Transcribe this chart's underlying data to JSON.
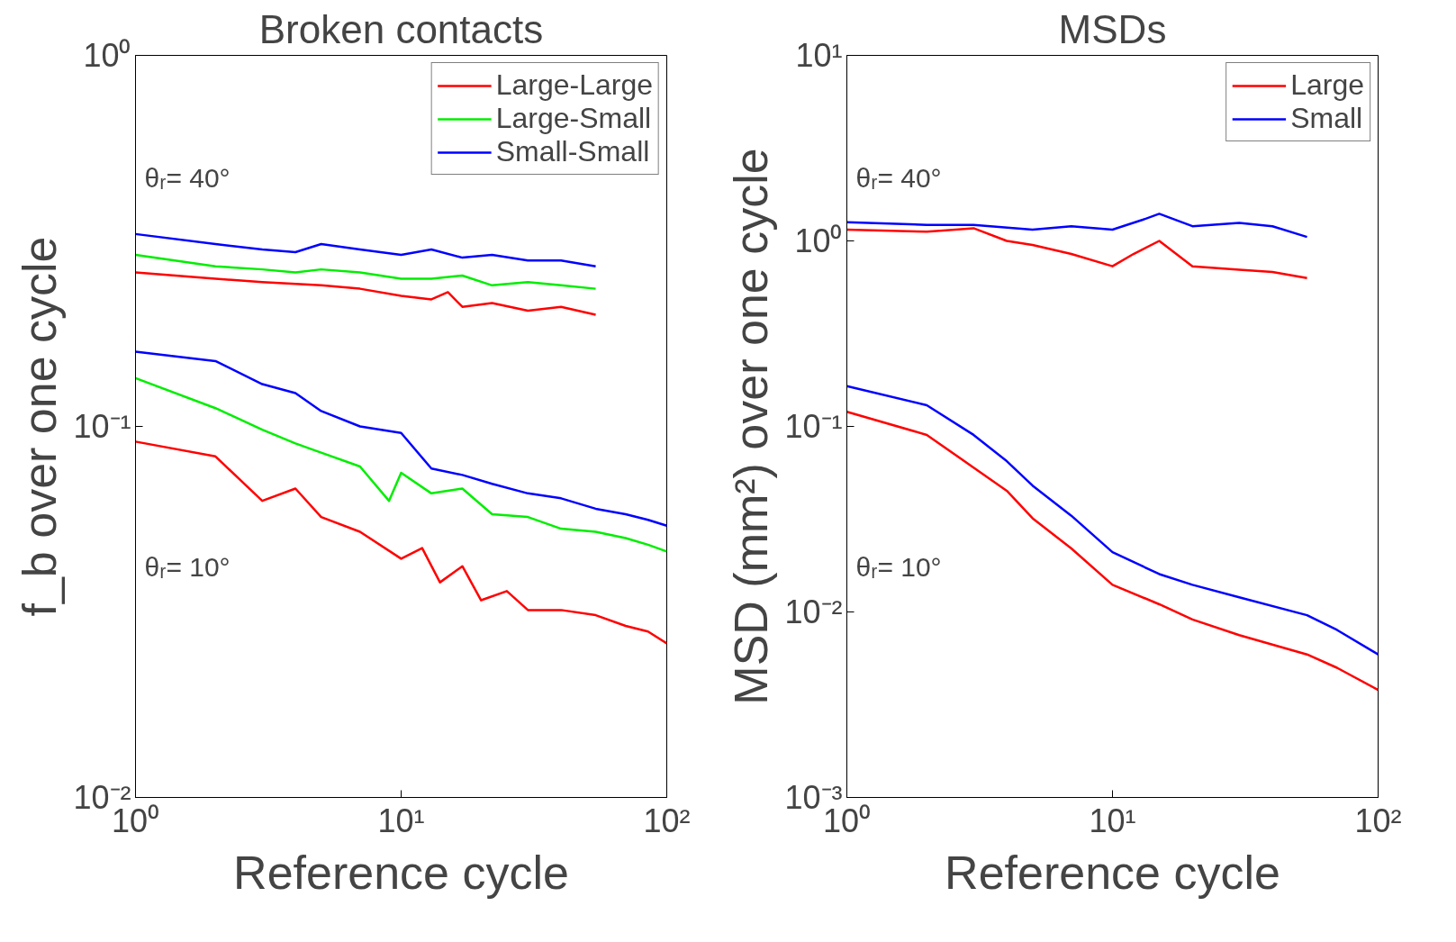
{
  "chart_data": [
    {
      "type": "line",
      "title": "Broken contacts",
      "xlabel": "Reference cycle",
      "ylabel": "f_b over one cycle",
      "log": "xy",
      "xlim": [
        1,
        100
      ],
      "ylim": [
        0.01,
        1
      ],
      "xticks": [
        {
          "value": 1,
          "label": "10⁰"
        },
        {
          "value": 10,
          "label": "10¹"
        },
        {
          "value": 100,
          "label": "10²"
        }
      ],
      "yticks": [
        {
          "value": 0.01,
          "label": "10⁻²"
        },
        {
          "value": 0.1,
          "label": "10⁻¹"
        },
        {
          "value": 1,
          "label": "10⁰"
        }
      ],
      "grid": false,
      "legend": "top right",
      "line_style": "solid",
      "marker": "none",
      "annotations": [
        "θᵣ= 40°",
        "θᵣ= 10°"
      ],
      "series": [
        {
          "name": "Large-Large",
          "color": "#ff0000",
          "x": [
            1,
            2,
            3,
            5,
            7,
            10,
            13,
            15,
            17,
            22,
            30,
            40,
            54
          ],
          "values": [
            0.26,
            0.25,
            0.245,
            0.24,
            0.235,
            0.225,
            0.22,
            0.23,
            0.21,
            0.215,
            0.205,
            0.21,
            0.2
          ]
        },
        {
          "name": "Large-Small",
          "color": "#00ee00",
          "x": [
            1,
            2,
            3,
            4,
            5,
            7,
            10,
            13,
            17,
            22,
            30,
            40,
            54
          ],
          "values": [
            0.29,
            0.27,
            0.265,
            0.26,
            0.265,
            0.26,
            0.25,
            0.25,
            0.255,
            0.24,
            0.245,
            0.24,
            0.235
          ]
        },
        {
          "name": "Small-Small",
          "color": "#0000ff",
          "x": [
            1,
            2,
            3,
            4,
            5,
            7,
            10,
            13,
            17,
            22,
            30,
            40,
            54
          ],
          "values": [
            0.33,
            0.31,
            0.3,
            0.295,
            0.31,
            0.3,
            0.29,
            0.3,
            0.285,
            0.29,
            0.28,
            0.28,
            0.27
          ]
        },
        {
          "color": "#ff0000",
          "x": [
            1,
            2,
            3,
            4,
            5,
            7,
            10,
            12,
            14,
            17,
            20,
            25,
            30,
            40,
            54,
            70,
            85,
            100
          ],
          "values": [
            0.091,
            0.083,
            0.063,
            0.068,
            0.057,
            0.052,
            0.044,
            0.047,
            0.038,
            0.042,
            0.034,
            0.036,
            0.032,
            0.032,
            0.031,
            0.029,
            0.028,
            0.026
          ]
        },
        {
          "color": "#00ee00",
          "x": [
            1,
            2,
            3,
            4,
            5,
            7,
            9,
            10,
            13,
            17,
            22,
            30,
            40,
            54,
            70,
            85,
            100
          ],
          "values": [
            0.135,
            0.112,
            0.098,
            0.09,
            0.085,
            0.078,
            0.063,
            0.075,
            0.066,
            0.068,
            0.058,
            0.057,
            0.053,
            0.052,
            0.05,
            0.048,
            0.046
          ]
        },
        {
          "color": "#0000ff",
          "x": [
            1,
            2,
            3,
            4,
            5,
            7,
            10,
            13,
            17,
            22,
            30,
            40,
            54,
            70,
            85,
            100
          ],
          "values": [
            0.159,
            0.15,
            0.13,
            0.123,
            0.11,
            0.1,
            0.096,
            0.077,
            0.074,
            0.07,
            0.066,
            0.064,
            0.06,
            0.058,
            0.056,
            0.054
          ]
        }
      ]
    },
    {
      "type": "line",
      "title": "MSDs",
      "xlabel": "Reference cycle",
      "ylabel": "MSD (mm²) over one cycle",
      "log": "xy",
      "xlim": [
        1,
        100
      ],
      "ylim": [
        0.001,
        10
      ],
      "xticks": [
        {
          "value": 1,
          "label": "10⁰"
        },
        {
          "value": 10,
          "label": "10¹"
        },
        {
          "value": 100,
          "label": "10²"
        }
      ],
      "yticks": [
        {
          "value": 0.001,
          "label": "10⁻³"
        },
        {
          "value": 0.01,
          "label": "10⁻²"
        },
        {
          "value": 0.1,
          "label": "10⁻¹"
        },
        {
          "value": 1,
          "label": "10⁰"
        },
        {
          "value": 10,
          "label": "10¹"
        }
      ],
      "grid": false,
      "legend": "top right",
      "line_style": "solid",
      "marker": "none",
      "annotations": [
        "θᵣ= 40°",
        "θᵣ= 10°"
      ],
      "series": [
        {
          "name": "Large",
          "color": "#ff0000",
          "x": [
            1,
            2,
            3,
            4,
            5,
            7,
            10,
            12,
            15,
            20,
            30,
            40,
            54
          ],
          "values": [
            1.15,
            1.12,
            1.17,
            1.0,
            0.95,
            0.85,
            0.73,
            0.85,
            1.0,
            0.73,
            0.7,
            0.68,
            0.63
          ]
        },
        {
          "name": "Small",
          "color": "#0000ff",
          "x": [
            1,
            2,
            3,
            5,
            7,
            10,
            13,
            15,
            20,
            30,
            40,
            54
          ],
          "values": [
            1.26,
            1.22,
            1.22,
            1.15,
            1.2,
            1.15,
            1.3,
            1.4,
            1.2,
            1.25,
            1.2,
            1.05
          ]
        },
        {
          "color": "#ff0000",
          "x": [
            1,
            2,
            3,
            4,
            5,
            7,
            10,
            15,
            20,
            30,
            54,
            70,
            100
          ],
          "values": [
            0.12,
            0.09,
            0.06,
            0.045,
            0.032,
            0.022,
            0.014,
            0.011,
            0.0091,
            0.0075,
            0.0059,
            0.005,
            0.0038
          ]
        },
        {
          "color": "#0000ff",
          "x": [
            1,
            2,
            3,
            4,
            5,
            7,
            10,
            15,
            20,
            30,
            54,
            70,
            100
          ],
          "values": [
            0.165,
            0.13,
            0.09,
            0.065,
            0.048,
            0.033,
            0.021,
            0.016,
            0.014,
            0.012,
            0.0096,
            0.008,
            0.0059
          ]
        }
      ]
    }
  ]
}
